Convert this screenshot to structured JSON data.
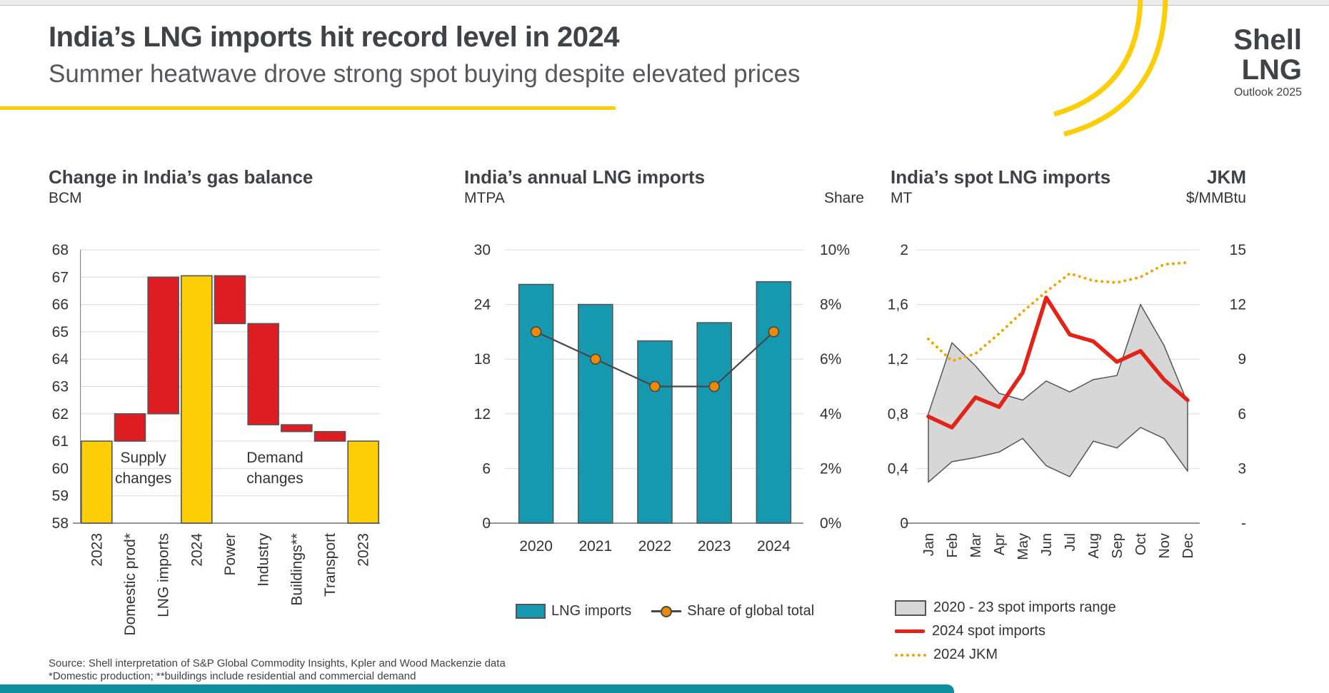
{
  "header": {
    "title": "India’s LNG imports hit record level in 2024",
    "subtitle": "Summer heatwave drove strong spot buying despite elevated prices"
  },
  "logo": {
    "brand_top": "Shell",
    "brand_bottom": "LNG",
    "tagline": "Outlook 2025"
  },
  "footer": {
    "source_line1": "Source: Shell interpretation of S&P Global Commodity Insights, Kpler and Wood Mackenzie data",
    "source_line2": "*Domestic production; **buildings include residential and commercial demand"
  },
  "colors": {
    "yellow": "#FBCE07",
    "red": "#DD1D21",
    "spot_red": "#E2231A",
    "teal": "#1699AE",
    "orange": "#EC8A00",
    "jkm_orange": "#F5A302",
    "band_fill": "#D7D7D7",
    "band_stroke": "#54565B",
    "grid": "#DCDCDC",
    "axis_line": "#85888C",
    "axis_text": "#303338",
    "bar_stroke": "#53565A",
    "line_dark": "#45484D",
    "strip_teal": "#0F8EA0"
  },
  "chart_data": [
    {
      "type": "bar",
      "variant": "waterfall",
      "title": "Change in India’s gas balance",
      "unit": "BCM",
      "ylim": [
        58,
        68
      ],
      "ytick_labels": [
        "58",
        "59",
        "60",
        "61",
        "62",
        "63",
        "64",
        "65",
        "66",
        "67",
        "68"
      ],
      "grid": "on",
      "categories": [
        "2023",
        "Domestic prod*",
        "LNG imports",
        "2024",
        "Power",
        "Industry",
        "Buildings**",
        "Transport",
        "2023"
      ],
      "bars": [
        {
          "label": "2023",
          "from": 58,
          "to": 61,
          "color": "yellow"
        },
        {
          "label": "Domestic prod*",
          "from": 61,
          "to": 62,
          "color": "red"
        },
        {
          "label": "LNG imports",
          "from": 62,
          "to": 67,
          "color": "red"
        },
        {
          "label": "2024",
          "from": 58,
          "to": 67.05,
          "color": "yellow"
        },
        {
          "label": "Power",
          "from": 65.3,
          "to": 67.05,
          "color": "red"
        },
        {
          "label": "Industry",
          "from": 61.6,
          "to": 65.3,
          "color": "red"
        },
        {
          "label": "Buildings**",
          "from": 61.35,
          "to": 61.6,
          "color": "red"
        },
        {
          "label": "Transport",
          "from": 61,
          "to": 61.35,
          "color": "red"
        },
        {
          "label": "2023",
          "from": 58,
          "to": 61,
          "color": "yellow"
        }
      ],
      "annotations": [
        {
          "lines": [
            "Supply",
            "changes"
          ]
        },
        {
          "lines": [
            "Demand",
            "changes"
          ]
        }
      ]
    },
    {
      "type": "bar",
      "variant": "bars-with-line",
      "title": "India’s annual LNG imports",
      "unit": "MTPA",
      "right_axis_label": "Share",
      "categories": [
        "2020",
        "2021",
        "2022",
        "2023",
        "2024"
      ],
      "left_ylim": [
        0,
        30
      ],
      "left_tick_labels": [
        "0",
        "6",
        "12",
        "18",
        "24",
        "30"
      ],
      "right_ylim_percent": [
        0,
        10
      ],
      "right_tick_labels": [
        "0%",
        "2%",
        "4%",
        "6%",
        "8%",
        "10%"
      ],
      "grid": "on",
      "series": [
        {
          "name": "LNG imports",
          "type": "bar",
          "axis": "left",
          "values": [
            26.2,
            24.0,
            20.0,
            22.0,
            26.5
          ]
        },
        {
          "name": "Share of global total",
          "type": "line",
          "axis": "right",
          "values": [
            7.0,
            6.0,
            5.0,
            5.0,
            7.0
          ]
        }
      ],
      "legend": [
        "LNG imports",
        "Share of global total"
      ],
      "legend_position": "bottom"
    },
    {
      "type": "line",
      "variant": "range-band",
      "title": "India’s spot LNG imports",
      "unit": "MT",
      "right_title": "JKM",
      "right_unit": "$/MMBtu",
      "x": [
        "Jan",
        "Feb",
        "Mar",
        "Apr",
        "May",
        "Jun",
        "Jul",
        "Aug",
        "Sep",
        "Oct",
        "Nov",
        "Dec"
      ],
      "left_ylim": [
        0,
        2
      ],
      "left_tick_labels": [
        "0",
        "0,4",
        "0,8",
        "1,2",
        "1,6",
        "2"
      ],
      "right_ylim": [
        0,
        15
      ],
      "right_tick_labels": [
        "-",
        "3",
        "6",
        "9",
        "12",
        "15"
      ],
      "grid": "on",
      "series": [
        {
          "name": "2020 - 23 spot imports range",
          "type": "band",
          "axis": "left",
          "low": [
            0.3,
            0.45,
            0.48,
            0.52,
            0.62,
            0.42,
            0.34,
            0.6,
            0.55,
            0.7,
            0.62,
            0.38
          ],
          "high": [
            0.8,
            1.32,
            1.15,
            0.95,
            0.9,
            1.04,
            0.96,
            1.05,
            1.08,
            1.6,
            1.3,
            0.88
          ]
        },
        {
          "name": "2024 spot imports",
          "type": "line",
          "axis": "left",
          "values": [
            0.78,
            0.7,
            0.92,
            0.85,
            1.1,
            1.65,
            1.38,
            1.33,
            1.18,
            1.26,
            1.05,
            0.9
          ]
        },
        {
          "name": "2024 JKM",
          "type": "dotted-line",
          "axis": "right",
          "values": [
            10.1,
            8.9,
            9.3,
            10.4,
            11.6,
            12.7,
            13.7,
            13.3,
            13.2,
            13.5,
            14.2,
            14.3
          ]
        }
      ],
      "legend": [
        "2020 - 23 spot imports range",
        "2024 spot imports",
        "2024 JKM"
      ],
      "legend_position": "bottom"
    }
  ]
}
